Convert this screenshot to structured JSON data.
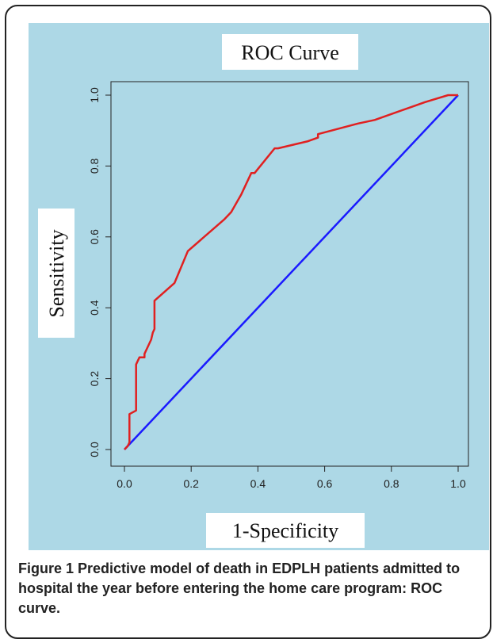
{
  "chart_data": {
    "type": "line",
    "title": "ROC Curve",
    "xlabel": "1-Specificity",
    "ylabel": "Sensitivity",
    "xlim": [
      0,
      1
    ],
    "ylim": [
      0,
      1
    ],
    "x_ticks": [
      "0.0",
      "0.2",
      "0.4",
      "0.6",
      "0.8",
      "1.0"
    ],
    "y_ticks": [
      "0.0",
      "0.2",
      "0.4",
      "0.6",
      "0.8",
      "1.0"
    ],
    "grid": false,
    "legend": "none",
    "series": [
      {
        "color": "#e02020",
        "x": [
          0,
          0.01,
          0.015,
          0.015,
          0.035,
          0.035,
          0.045,
          0.06,
          0.06,
          0.07,
          0.08,
          0.085,
          0.09,
          0.09,
          0.15,
          0.19,
          0.3,
          0.32,
          0.35,
          0.38,
          0.39,
          0.45,
          0.46,
          0.55,
          0.58,
          0.58,
          0.7,
          0.75,
          0.87,
          0.9,
          0.97,
          1.0
        ],
        "y": [
          0,
          0.01,
          0.02,
          0.1,
          0.11,
          0.24,
          0.26,
          0.26,
          0.27,
          0.29,
          0.31,
          0.33,
          0.34,
          0.42,
          0.47,
          0.56,
          0.65,
          0.67,
          0.72,
          0.78,
          0.78,
          0.85,
          0.85,
          0.87,
          0.88,
          0.89,
          0.92,
          0.93,
          0.97,
          0.98,
          1.0,
          1.0
        ]
      },
      {
        "color": "#1a1aff",
        "x": [
          0,
          1
        ],
        "y": [
          0,
          1
        ]
      }
    ]
  },
  "caption": {
    "label": "Figure 1",
    "text": "Predictive model of death in EDPLH patients admitted to hospital the year before entering the home care program: ROC curve."
  },
  "colors": {
    "panel": "#add8e6",
    "axis": "#222222",
    "label_box": "#ffffff"
  }
}
